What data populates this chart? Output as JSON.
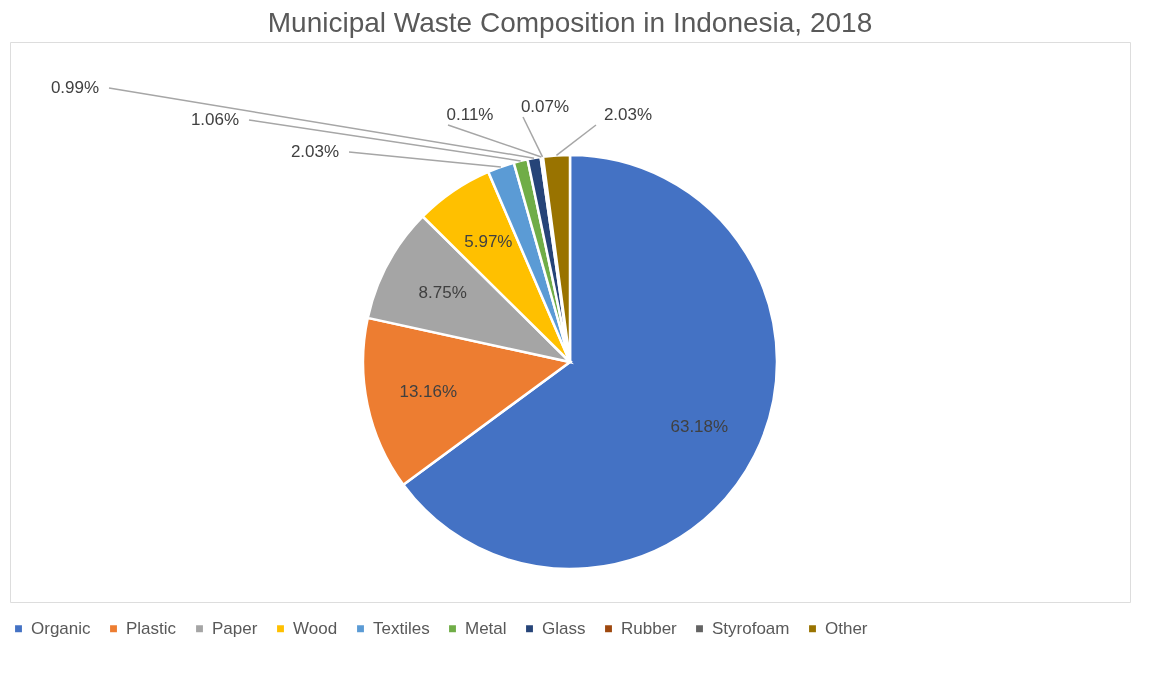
{
  "chart_data": {
    "type": "pie",
    "title": "Municipal Waste Composition in Indonesia, 2018",
    "categories": [
      "Organic",
      "Plastic",
      "Paper",
      "Wood",
      "Textiles",
      "Metal",
      "Glass",
      "Rubber",
      "Styrofoam",
      "Other"
    ],
    "values": [
      63.18,
      13.16,
      8.75,
      5.97,
      2.03,
      1.06,
      0.99,
      0.11,
      0.07,
      2.03
    ],
    "value_labels": [
      "63.18%",
      "13.16%",
      "8.75%",
      "5.97%",
      "2.03%",
      "1.06%",
      "0.99%",
      "0.11%",
      "0.07%",
      "2.03%"
    ],
    "colors": [
      "#4472c4",
      "#ed7d31",
      "#a5a5a5",
      "#ffc000",
      "#5b9bd5",
      "#70ad47",
      "#264478",
      "#9e480e",
      "#636363",
      "#997300"
    ],
    "legend": "bottom"
  }
}
